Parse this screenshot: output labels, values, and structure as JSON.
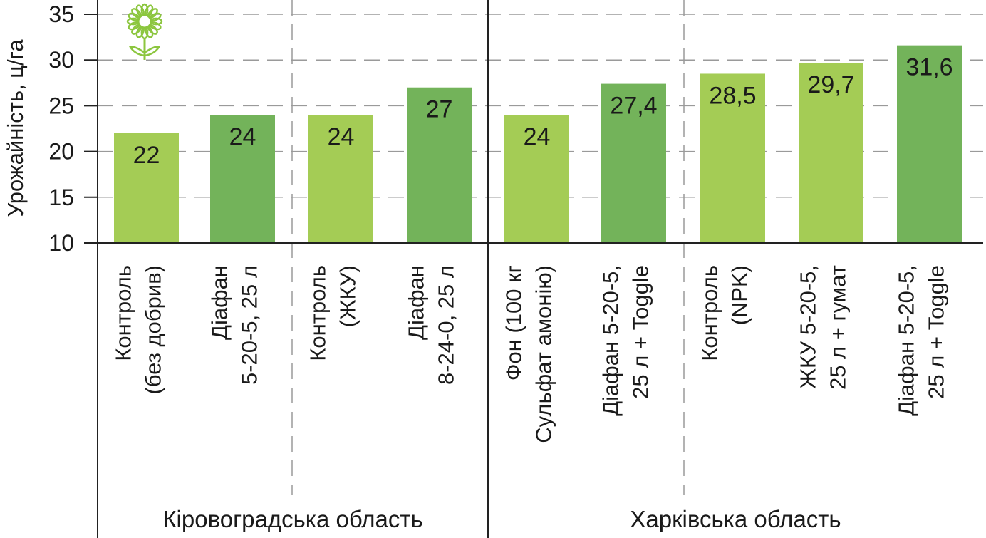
{
  "chart_data": {
    "type": "bar",
    "ylabel": "Урожайність, ц/га",
    "ylim": [
      10,
      35
    ],
    "yticks": [
      "10",
      "15",
      "20",
      "25",
      "30",
      "35"
    ],
    "grid": "dashed horizontal and vertical",
    "groups": [
      {
        "name": "Кіровоградська область",
        "bars": [
          {
            "label_lines": [
              "Контроль",
              "(без добрив)"
            ],
            "value": 22,
            "value_label": "22",
            "color": "#a4cc55"
          },
          {
            "label_lines": [
              "Діафан",
              "5-20-5, 25 л"
            ],
            "value": 24,
            "value_label": "24",
            "color": "#73b35a"
          },
          {
            "label_lines": [
              "Контроль",
              "(ЖКУ)"
            ],
            "value": 24,
            "value_label": "24",
            "color": "#a4cc55"
          },
          {
            "label_lines": [
              "Діафан",
              "8-24-0, 25 л"
            ],
            "value": 27,
            "value_label": "27",
            "color": "#73b35a"
          }
        ]
      },
      {
        "name": "Харківська область",
        "bars": [
          {
            "label_lines": [
              "Фон (100 кг",
              "Сульфат амонію)"
            ],
            "value": 24,
            "value_label": "24",
            "color": "#a4cc55"
          },
          {
            "label_lines": [
              "Діафан 5-20-5,",
              "25 л + Toggle"
            ],
            "value": 27.4,
            "value_label": "27,4",
            "color": "#73b35a"
          },
          {
            "label_lines": [
              "Контроль",
              "(NPK)"
            ],
            "value": 28.5,
            "value_label": "28,5",
            "color": "#a4cc55"
          },
          {
            "label_lines": [
              "ЖКУ 5-20-5,",
              "25 л + гумат"
            ],
            "value": 29.7,
            "value_label": "29,7",
            "color": "#a4cc55"
          },
          {
            "label_lines": [
              "Діафан 5-20-5,",
              "25 л + Toggle"
            ],
            "value": 31.6,
            "value_label": "31,6",
            "color": "#73b35a"
          }
        ]
      }
    ],
    "icon": "sunflower-icon",
    "icon_color": "#8cc63f"
  }
}
